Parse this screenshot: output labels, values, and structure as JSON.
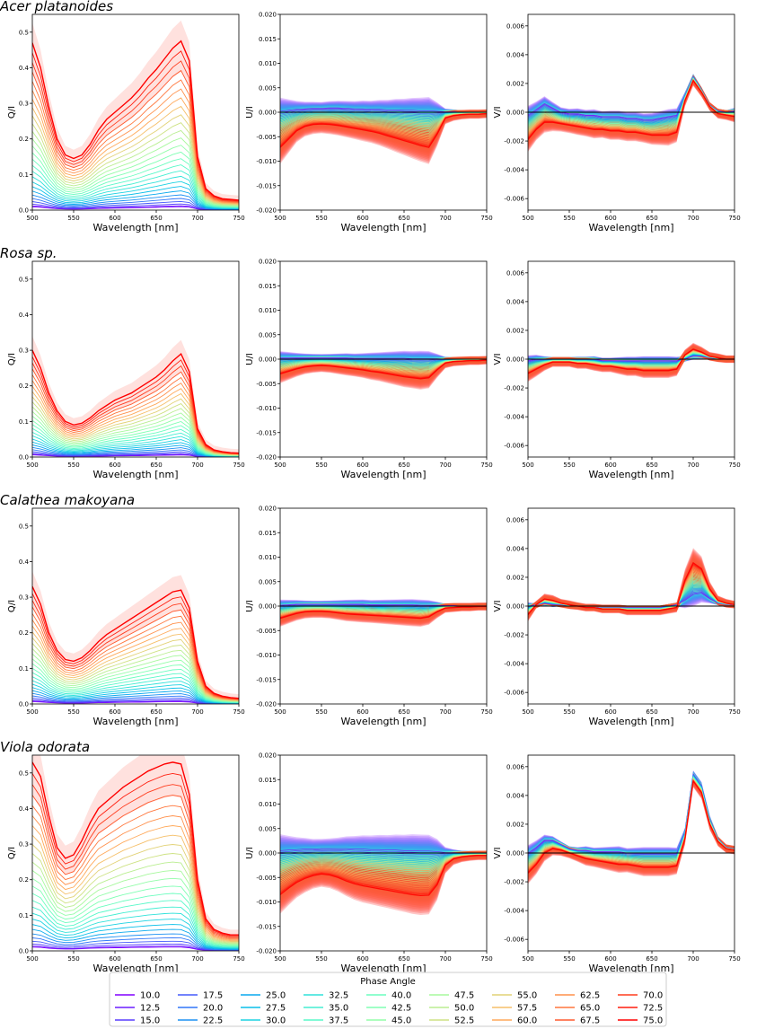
{
  "figure": {
    "xlabel": "Wavelength [nm]",
    "legend_title": "Phase Angle",
    "legend_columns": 9
  },
  "colors": {
    "frame": "#000000",
    "zero_line": "#000000",
    "text": "#000000",
    "legend_border": "#cccccc",
    "band_red": "#ff5a4a"
  },
  "chart_data": {
    "type": "line",
    "phase_angles": [
      "10.0",
      "12.5",
      "15.0",
      "17.5",
      "20.0",
      "22.5",
      "25.0",
      "27.5",
      "30.0",
      "32.5",
      "35.0",
      "37.5",
      "40.0",
      "42.5",
      "45.0",
      "47.5",
      "50.0",
      "52.5",
      "55.0",
      "57.5",
      "60.0",
      "62.5",
      "65.0",
      "67.5",
      "70.0",
      "72.5",
      "75.0"
    ],
    "xlim": [
      500,
      750
    ],
    "xticks": [
      500,
      550,
      600,
      650,
      700,
      750
    ],
    "xticklabels": [
      "500",
      "550",
      "600",
      "650",
      "700",
      "750"
    ],
    "wavelengths": [
      500,
      510,
      520,
      530,
      540,
      550,
      560,
      570,
      580,
      590,
      600,
      610,
      620,
      630,
      640,
      650,
      660,
      670,
      680,
      690,
      700,
      710,
      720,
      730,
      740,
      750
    ],
    "axes_meta": {
      "Q": {
        "ylabel": "Q/I",
        "ylim": [
          0,
          0.55
        ],
        "yticks": [
          0,
          0.1,
          0.2,
          0.3,
          0.4,
          0.5
        ],
        "yticklabels": [
          "0.0",
          "0.1",
          "0.2",
          "0.3",
          "0.4",
          "0.5"
        ]
      },
      "U": {
        "ylabel": "U/I",
        "ylim": [
          -0.02,
          0.02
        ],
        "yticks": [
          -0.02,
          -0.015,
          -0.01,
          -0.005,
          0,
          0.005,
          0.01,
          0.015,
          0.02
        ],
        "yticklabels": [
          "-0.020",
          "-0.015",
          "-0.010",
          "-0.005",
          "0.000",
          "0.005",
          "0.010",
          "0.015",
          "0.020"
        ]
      },
      "V": {
        "ylabel": "V/I",
        "ylim": [
          -0.0068,
          0.0068
        ],
        "yticks": [
          -0.006,
          -0.004,
          -0.002,
          0,
          0.002,
          0.004,
          0.006
        ],
        "yticklabels": [
          "-0.006",
          "-0.004",
          "-0.002",
          "0.000",
          "0.002",
          "0.004",
          "0.006"
        ]
      }
    },
    "species": [
      {
        "name": "Acer platanoides",
        "Q_max": [
          0.47,
          0.4,
          0.29,
          0.2,
          0.155,
          0.145,
          0.155,
          0.185,
          0.225,
          0.255,
          0.275,
          0.295,
          0.315,
          0.34,
          0.37,
          0.395,
          0.425,
          0.455,
          0.475,
          0.42,
          0.15,
          0.06,
          0.04,
          0.032,
          0.03,
          0.028
        ],
        "U_max": [
          -0.0072,
          -0.0055,
          -0.0038,
          -0.0029,
          -0.0025,
          -0.0024,
          -0.0025,
          -0.0027,
          -0.003,
          -0.0033,
          -0.0036,
          -0.0039,
          -0.0043,
          -0.0048,
          -0.0053,
          -0.0058,
          -0.0063,
          -0.0068,
          -0.0072,
          -0.0045,
          -0.0012,
          -0.0007,
          -0.0005,
          -0.0004,
          -0.0004,
          -0.0003
        ],
        "U_min": [
          0.0002,
          0.0004,
          0.0006,
          0.0007,
          0.0008,
          0.0008,
          0.0009,
          0.0009,
          0.0008,
          0.0007,
          0.0007,
          0.0006,
          0.0006,
          0.0005,
          0.0005,
          0.0004,
          0.0004,
          0.0003,
          0.0003,
          0.0002,
          0.0001,
          0.0001,
          0,
          0,
          0,
          0
        ],
        "V_max": [
          -0.0019,
          -0.0012,
          -0.0007,
          -0.0007,
          -0.0008,
          -0.0009,
          -0.001,
          -0.0011,
          -0.0012,
          -0.0012,
          -0.0013,
          -0.0013,
          -0.0014,
          -0.0014,
          -0.0015,
          -0.0016,
          -0.0016,
          -0.0016,
          -0.0014,
          0.0008,
          0.0022,
          0.0014,
          0.0004,
          -0.0001,
          -0.0002,
          -0.0003
        ],
        "V_min": [
          -0.0002,
          0.0002,
          0.0006,
          0.0003,
          0,
          -0.0001,
          -0.0001,
          -0.0002,
          -0.0002,
          -0.0003,
          -0.0003,
          -0.0003,
          -0.0004,
          -0.0004,
          -0.0005,
          -0.0005,
          -0.0004,
          -0.0003,
          -0.0002,
          0.0012,
          0.0025,
          0.0016,
          0.0005,
          0.0001,
          0,
          0.0001
        ]
      },
      {
        "name": "Rosa sp.",
        "Q_max": [
          0.3,
          0.25,
          0.18,
          0.13,
          0.1,
          0.09,
          0.095,
          0.11,
          0.13,
          0.145,
          0.16,
          0.17,
          0.18,
          0.195,
          0.21,
          0.225,
          0.245,
          0.27,
          0.29,
          0.24,
          0.08,
          0.035,
          0.02,
          0.015,
          0.012,
          0.011
        ],
        "U_max": [
          -0.003,
          -0.0025,
          -0.002,
          -0.0016,
          -0.0014,
          -0.0013,
          -0.0014,
          -0.0016,
          -0.0018,
          -0.002,
          -0.0022,
          -0.0025,
          -0.0027,
          -0.003,
          -0.0033,
          -0.0036,
          -0.0038,
          -0.004,
          -0.0038,
          -0.0022,
          -0.0008,
          -0.0005,
          -0.0004,
          -0.0003,
          -0.0003,
          -0.0002
        ],
        "U_min": [
          0.0003,
          0.0003,
          0.0003,
          0.0003,
          0.0003,
          0.0003,
          0.0003,
          0.0003,
          0.0003,
          0.0002,
          0.0002,
          0.0002,
          0.0002,
          0.0002,
          0.0002,
          0.0002,
          0.0001,
          0.0001,
          0.0001,
          0.0001,
          0,
          0,
          0,
          0,
          0,
          0
        ],
        "V_max": [
          -0.001,
          -0.0007,
          -0.0004,
          -0.0002,
          -0.0002,
          -0.0002,
          -0.0003,
          -0.0003,
          -0.0004,
          -0.0005,
          -0.0005,
          -0.0006,
          -0.0007,
          -0.0007,
          -0.0008,
          -0.0008,
          -0.0008,
          -0.0008,
          -0.0007,
          0.0003,
          0.0007,
          0.0005,
          0.0002,
          0.0001,
          0,
          0
        ],
        "V_min": [
          -0.0001,
          0,
          0,
          0,
          0,
          0,
          0,
          0,
          0,
          -0.0001,
          -0.0001,
          -0.0001,
          -0.0001,
          -0.0001,
          -0.0001,
          -0.0001,
          -0.0001,
          -0.0001,
          -0.0001,
          0,
          0.0002,
          0.0002,
          0.0001,
          0,
          0,
          0
        ]
      },
      {
        "name": "Calathea makoyana",
        "Q_max": [
          0.33,
          0.28,
          0.2,
          0.15,
          0.125,
          0.12,
          0.13,
          0.15,
          0.175,
          0.195,
          0.21,
          0.225,
          0.24,
          0.255,
          0.27,
          0.285,
          0.3,
          0.315,
          0.32,
          0.27,
          0.12,
          0.05,
          0.03,
          0.022,
          0.018,
          0.016
        ],
        "U_max": [
          -0.0025,
          -0.002,
          -0.0015,
          -0.0012,
          -0.0011,
          -0.0011,
          -0.0012,
          -0.0014,
          -0.0016,
          -0.0017,
          -0.0018,
          -0.0019,
          -0.002,
          -0.0021,
          -0.0022,
          -0.0023,
          -0.0024,
          -0.0025,
          -0.0022,
          -0.0012,
          -0.0004,
          -0.0003,
          -0.0002,
          -0.0002,
          -0.0001,
          -0.0001
        ],
        "U_min": [
          0.0002,
          0.0003,
          0.0004,
          0.0004,
          0.0004,
          0.0004,
          0.0004,
          0.0004,
          0.0004,
          0.0004,
          0.0004,
          0.0003,
          0.0003,
          0.0003,
          0.0003,
          0.0003,
          0.0003,
          0.0002,
          0.0002,
          0.0002,
          0.0001,
          0.0001,
          0,
          0,
          0,
          0
        ],
        "V_max": [
          -0.0006,
          0.0001,
          0.0005,
          0.0004,
          0.0002,
          0.0001,
          0,
          -0.0001,
          -0.0001,
          -0.0002,
          -0.0002,
          -0.0002,
          -0.0003,
          -0.0003,
          -0.0003,
          -0.0003,
          -0.0003,
          -0.0002,
          -0.0001,
          0.0018,
          0.003,
          0.0026,
          0.0012,
          0.0004,
          0.0002,
          0.0001
        ],
        "V_min": [
          0,
          0.0001,
          0.0002,
          0.0001,
          0.0001,
          0,
          0,
          -0.0001,
          -0.0001,
          -0.0001,
          -0.0001,
          -0.0001,
          -0.0001,
          -0.0001,
          -0.0001,
          -0.0001,
          -0.0001,
          0,
          0.0001,
          0.0004,
          0.0008,
          0.0009,
          0.0005,
          0.0002,
          0.0001,
          0.0001
        ]
      },
      {
        "name": "Viola odorata",
        "Q_max": [
          0.53,
          0.49,
          0.38,
          0.29,
          0.26,
          0.27,
          0.31,
          0.36,
          0.4,
          0.42,
          0.44,
          0.46,
          0.475,
          0.49,
          0.505,
          0.515,
          0.525,
          0.53,
          0.525,
          0.44,
          0.2,
          0.09,
          0.06,
          0.05,
          0.045,
          0.045
        ],
        "U_max": [
          -0.0085,
          -0.0072,
          -0.006,
          -0.0052,
          -0.0046,
          -0.0043,
          -0.0045,
          -0.005,
          -0.0057,
          -0.0063,
          -0.0067,
          -0.007,
          -0.0073,
          -0.0076,
          -0.0079,
          -0.0082,
          -0.0085,
          -0.0087,
          -0.0086,
          -0.0065,
          -0.0025,
          -0.0012,
          -0.0008,
          -0.0006,
          -0.0005,
          -0.0005
        ],
        "U_min": [
          0.0005,
          0.0006,
          0.0007,
          0.0008,
          0.0008,
          0.0009,
          0.0009,
          0.0009,
          0.0009,
          0.0008,
          0.0008,
          0.0007,
          0.0007,
          0.0006,
          0.0006,
          0.0005,
          0.0005,
          0.0004,
          0.0004,
          0.0003,
          0.0001,
          0.0001,
          0,
          0,
          0,
          0
        ],
        "V_max": [
          -0.0014,
          -0.0008,
          0,
          0.0003,
          0.0002,
          0,
          -0.0002,
          -0.0004,
          -0.0005,
          -0.0006,
          -0.0007,
          -0.0008,
          -0.0008,
          -0.0009,
          -0.001,
          -0.001,
          -0.001,
          -0.001,
          -0.0009,
          0.001,
          0.005,
          0.0042,
          0.002,
          0.0008,
          0.0003,
          0.0002
        ],
        "V_min": [
          0,
          0.0004,
          0.0009,
          0.0009,
          0.0006,
          0.0003,
          0.0002,
          0.0002,
          0.0001,
          0.0001,
          0.0001,
          0.0001,
          0,
          0,
          0,
          0,
          0,
          0,
          0,
          0.0015,
          0.0055,
          0.0047,
          0.0024,
          0.001,
          0.0004,
          0.0003
        ]
      }
    ]
  }
}
